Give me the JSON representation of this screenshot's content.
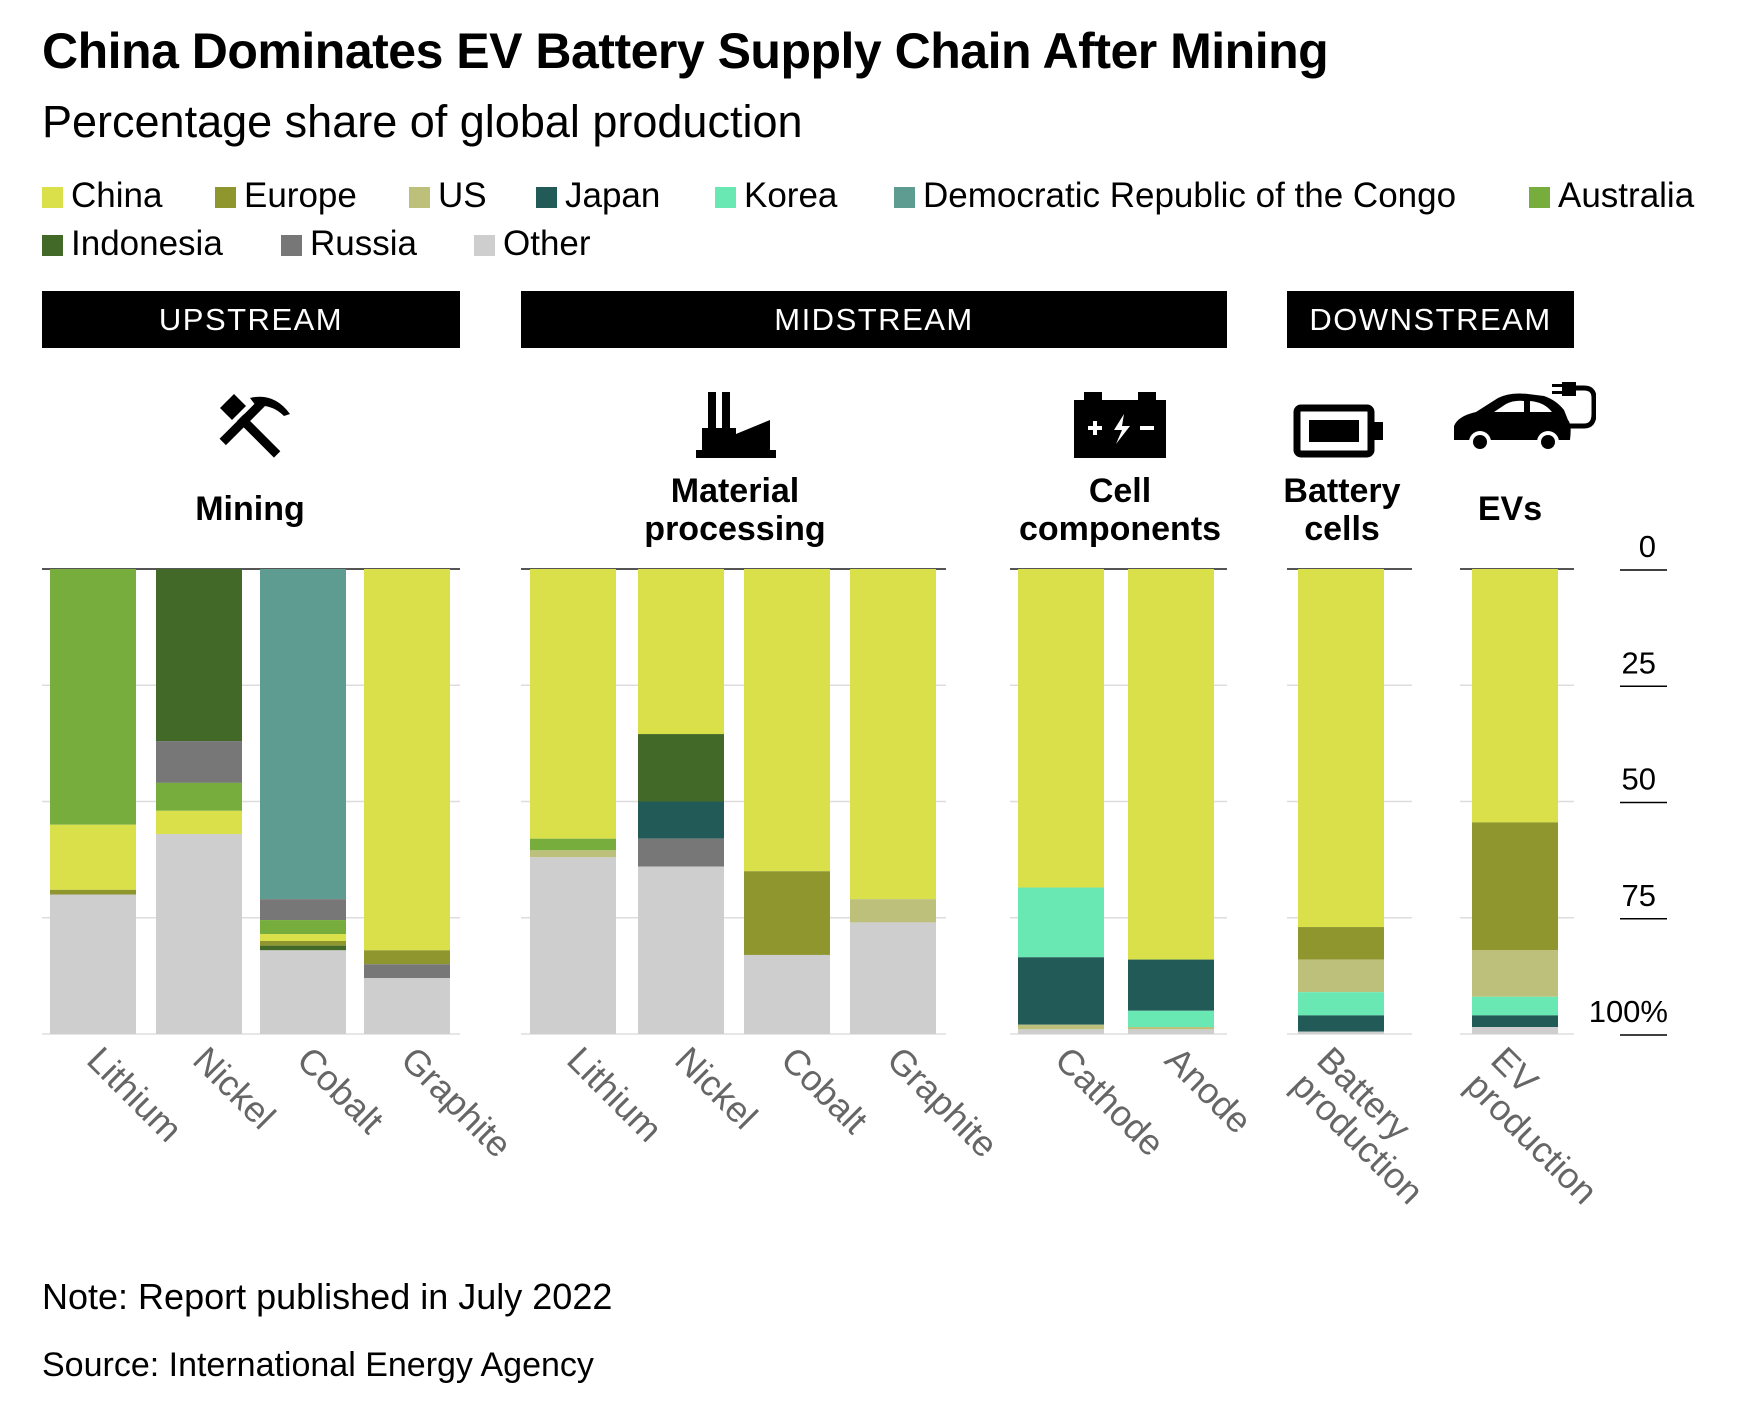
{
  "title": "China Dominates EV Battery Supply Chain After Mining",
  "subtitle": "Percentage share of global production",
  "stages": [
    "UPSTREAM",
    "MIDSTREAM",
    "DOWNSTREAM"
  ],
  "groups": [
    "Mining",
    "Material\nprocessing",
    "Cell\ncomponents",
    "Battery\ncells",
    "EVs"
  ],
  "icons": [
    "hammer-pick-icon",
    "factory-icon",
    "battery-terminal-icon",
    "battery-icon",
    "ev-car-icon"
  ],
  "note": "Note: Report published in July 2022",
  "source": "Source: International Energy Agency",
  "colors": {
    "China": "#d9e04a",
    "Europe": "#8f962e",
    "US": "#bcc07a",
    "Japan": "#225a57",
    "Korea": "#6ae8b4",
    "Democratic Republic of the Congo": "#5e9c92",
    "Australia": "#76ad3c",
    "Indonesia": "#436928",
    "Russia": "#777777",
    "Other": "#cecece"
  },
  "chart_data": {
    "type": "bar",
    "stacked": true,
    "title": "China Dominates EV Battery Supply Chain After Mining",
    "subtitle": "Percentage share of global production",
    "ylim": [
      0,
      100
    ],
    "yticks": [
      "0",
      "25",
      "50",
      "75",
      "100%"
    ],
    "categories": [
      "Lithium",
      "Nickel",
      "Cobalt",
      "Graphite",
      "Lithium",
      "Nickel",
      "Cobalt",
      "Graphite",
      "Cathode",
      "Anode",
      "Battery\nproduction",
      "EV\nproduction"
    ],
    "category_groups": [
      0,
      0,
      0,
      0,
      1,
      1,
      1,
      1,
      2,
      2,
      3,
      4
    ],
    "series": [
      {
        "name": "Australia",
        "values": [
          55,
          0,
          0,
          0,
          0,
          0,
          0,
          0,
          0,
          0,
          0,
          0
        ]
      },
      {
        "name": "Indonesia",
        "values": [
          0,
          37,
          0,
          0,
          0,
          0,
          0,
          0,
          0,
          0,
          0,
          0
        ]
      },
      {
        "name": "Democratic Republic of the Congo",
        "values": [
          0,
          0,
          71,
          0,
          0,
          0,
          0,
          0,
          0,
          0,
          0,
          0
        ]
      },
      {
        "name": "China",
        "values": [
          0,
          0,
          0,
          0,
          0,
          0,
          0,
          0,
          0,
          0,
          0,
          0
        ]
      },
      {
        "name": "Russia",
        "values": [
          0,
          0,
          0,
          0,
          0,
          0,
          0,
          0,
          0,
          0,
          0,
          0
        ]
      },
      {
        "name": "Europe",
        "values": [
          0,
          0,
          0,
          0,
          0,
          0,
          0,
          0,
          0,
          0,
          0,
          0
        ]
      },
      {
        "name": "US",
        "values": [
          0,
          0,
          0,
          0,
          0,
          0,
          0,
          0,
          0,
          0,
          0,
          0
        ]
      },
      {
        "name": "Japan",
        "values": [
          0,
          0,
          0,
          0,
          0,
          0,
          0,
          0,
          0,
          0,
          0,
          0
        ]
      },
      {
        "name": "Korea",
        "values": [
          0,
          0,
          0,
          0,
          0,
          0,
          0,
          0,
          0,
          0,
          0,
          0
        ]
      },
      {
        "name": "Other",
        "values": [
          0,
          0,
          0,
          0,
          0,
          0,
          0,
          0,
          0,
          0,
          0,
          0
        ]
      }
    ],
    "stacks": [
      [
        [
          "Australia",
          55
        ],
        [
          "China",
          14
        ],
        [
          "Europe",
          1
        ],
        [
          "Other",
          30
        ]
      ],
      [
        [
          "Indonesia",
          37
        ],
        [
          "Russia",
          9
        ],
        [
          "Australia",
          6
        ],
        [
          "China",
          5
        ],
        [
          "Other",
          43
        ]
      ],
      [
        [
          "Democratic Republic of the Congo",
          71
        ],
        [
          "Russia",
          4.5
        ],
        [
          "Australia",
          3
        ],
        [
          "China",
          1.5
        ],
        [
          "Europe",
          1
        ],
        [
          "Indonesia",
          1
        ],
        [
          "Other",
          18
        ]
      ],
      [
        [
          "China",
          82
        ],
        [
          "Europe",
          3
        ],
        [
          "Russia",
          3
        ],
        [
          "Other",
          12
        ]
      ],
      [
        [
          "China",
          58
        ],
        [
          "Australia",
          2.5
        ],
        [
          "US",
          1.5
        ],
        [
          "Other",
          38
        ]
      ],
      [
        [
          "China",
          35.5
        ],
        [
          "Indonesia",
          14.5
        ],
        [
          "Japan",
          8
        ],
        [
          "Russia",
          6
        ],
        [
          "Other",
          36
        ]
      ],
      [
        [
          "China",
          65
        ],
        [
          "Europe",
          18
        ],
        [
          "Other",
          17
        ]
      ],
      [
        [
          "China",
          71
        ],
        [
          "US",
          5
        ],
        [
          "Other",
          24
        ]
      ],
      [
        [
          "China",
          68.5
        ],
        [
          "Korea",
          15
        ],
        [
          "Japan",
          14.5
        ],
        [
          "US",
          1
        ],
        [
          "Other",
          1
        ]
      ],
      [
        [
          "China",
          84
        ],
        [
          "Japan",
          11
        ],
        [
          "Korea",
          3.5
        ],
        [
          "US",
          0.5
        ],
        [
          "Other",
          1
        ]
      ],
      [
        [
          "China",
          77
        ],
        [
          "Europe",
          7
        ],
        [
          "US",
          7
        ],
        [
          "Korea",
          5
        ],
        [
          "Japan",
          3.5
        ],
        [
          "Other",
          0.5
        ]
      ],
      [
        [
          "China",
          54.5
        ],
        [
          "Europe",
          27.5
        ],
        [
          "US",
          10
        ],
        [
          "Korea",
          4
        ],
        [
          "Japan",
          2.5
        ],
        [
          "Other",
          1.5
        ]
      ]
    ],
    "legend": [
      "China",
      "Europe",
      "US",
      "Japan",
      "Korea",
      "Democratic Republic of the Congo",
      "Australia",
      "Indonesia",
      "Russia",
      "Other"
    ],
    "legend_position": "top",
    "grid": true
  }
}
